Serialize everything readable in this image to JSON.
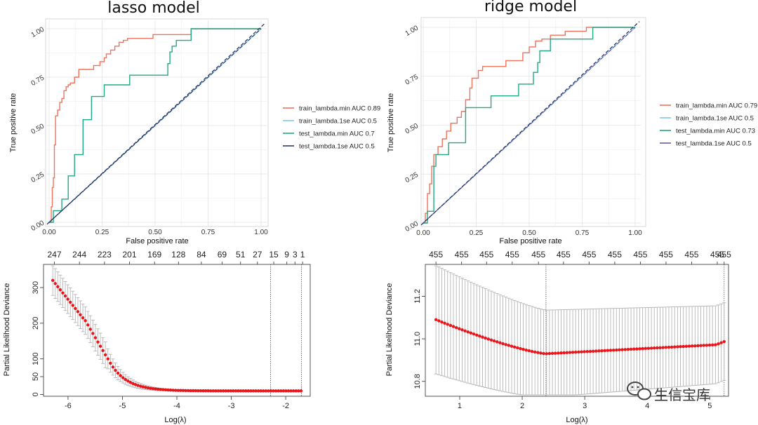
{
  "chart_data": [
    {
      "type": "line",
      "title": "lasso model",
      "xlabel": "False positive rate",
      "ylabel": "True positive rate",
      "xlim": [
        0,
        1
      ],
      "ylim": [
        0,
        1
      ],
      "xticks": [
        "0.00",
        "0.25",
        "0.50",
        "0.75",
        "1.00"
      ],
      "yticks": [
        "0.00",
        "0.25",
        "0.50",
        "0.75",
        "1.00"
      ],
      "series": [
        {
          "name": "train_lambda.min AUC 0.89",
          "color": "#f0715c",
          "x": [
            0,
            0.01,
            0.01,
            0.015,
            0.015,
            0.02,
            0.02,
            0.025,
            0.025,
            0.03,
            0.03,
            0.04,
            0.04,
            0.05,
            0.05,
            0.06,
            0.06,
            0.07,
            0.07,
            0.08,
            0.08,
            0.09,
            0.09,
            0.1,
            0.1,
            0.12,
            0.12,
            0.14,
            0.14,
            0.21,
            0.21,
            0.24,
            0.24,
            0.26,
            0.26,
            0.27,
            0.27,
            0.29,
            0.29,
            0.31,
            0.31,
            0.33,
            0.33,
            0.35,
            0.35,
            0.37,
            0.37,
            0.49,
            0.49,
            0.67,
            0.67,
            1.0
          ],
          "y": [
            0,
            0,
            0.08,
            0.08,
            0.18,
            0.18,
            0.23,
            0.23,
            0.4,
            0.4,
            0.55,
            0.55,
            0.58,
            0.58,
            0.62,
            0.62,
            0.64,
            0.64,
            0.68,
            0.68,
            0.7,
            0.7,
            0.71,
            0.71,
            0.72,
            0.72,
            0.75,
            0.75,
            0.79,
            0.79,
            0.81,
            0.81,
            0.83,
            0.83,
            0.85,
            0.85,
            0.87,
            0.87,
            0.89,
            0.89,
            0.91,
            0.91,
            0.93,
            0.93,
            0.94,
            0.94,
            0.95,
            0.95,
            0.97,
            0.97,
            1.0,
            1.0
          ]
        },
        {
          "name": "train_lambda.1se AUC 0.5",
          "color": "#7fc8e8",
          "x": [
            0,
            1
          ],
          "y": [
            0,
            1
          ]
        },
        {
          "name": "test_lambda.min AUC 0.7",
          "color": "#22a884",
          "x": [
            0,
            0.02,
            0.02,
            0.06,
            0.06,
            0.09,
            0.09,
            0.12,
            0.12,
            0.16,
            0.16,
            0.2,
            0.2,
            0.26,
            0.26,
            0.38,
            0.38,
            0.46,
            0.46,
            0.56,
            0.56,
            0.57,
            0.57,
            0.58,
            0.58,
            0.6,
            0.6,
            0.62,
            0.62,
            0.67,
            0.67,
            0.84,
            0.84,
            1.0
          ],
          "y": [
            0,
            0,
            0.06,
            0.06,
            0.12,
            0.12,
            0.24,
            0.24,
            0.35,
            0.35,
            0.53,
            0.53,
            0.65,
            0.65,
            0.71,
            0.71,
            0.76,
            0.76,
            0.76,
            0.76,
            0.82,
            0.82,
            0.88,
            0.88,
            0.91,
            0.91,
            0.94,
            0.94,
            0.94,
            0.94,
            1.0,
            1.0,
            1.0,
            1.0
          ]
        },
        {
          "name": "test_lambda.1se AUC 0.5",
          "color": "#2b3a6e",
          "x": [
            0,
            1
          ],
          "y": [
            0,
            1
          ]
        }
      ]
    },
    {
      "type": "line",
      "title": "ridge model",
      "xlabel": "False positive rate",
      "ylabel": "True positive rate",
      "xlim": [
        0,
        1
      ],
      "ylim": [
        0,
        1
      ],
      "xticks": [
        "0.00",
        "0.25",
        "0.50",
        "0.75",
        "1.00"
      ],
      "yticks": [
        "0.00",
        "0.25",
        "0.50",
        "0.75",
        "1.00"
      ],
      "series": [
        {
          "name": "train_lambda.min AUC 0.79",
          "color": "#f0715c",
          "x": [
            0,
            0.01,
            0.01,
            0.02,
            0.02,
            0.03,
            0.03,
            0.04,
            0.04,
            0.05,
            0.05,
            0.07,
            0.07,
            0.09,
            0.09,
            0.11,
            0.11,
            0.13,
            0.13,
            0.16,
            0.16,
            0.18,
            0.18,
            0.2,
            0.2,
            0.22,
            0.22,
            0.23,
            0.23,
            0.26,
            0.26,
            0.28,
            0.28,
            0.39,
            0.39,
            0.47,
            0.47,
            0.5,
            0.5,
            0.53,
            0.53,
            0.56,
            0.56,
            0.6,
            0.6,
            0.67,
            0.67,
            0.77,
            0.77,
            0.8,
            0.8,
            1.0
          ],
          "y": [
            0,
            0,
            0.05,
            0.05,
            0.15,
            0.15,
            0.2,
            0.2,
            0.29,
            0.29,
            0.35,
            0.35,
            0.39,
            0.39,
            0.43,
            0.43,
            0.47,
            0.47,
            0.51,
            0.51,
            0.54,
            0.54,
            0.57,
            0.57,
            0.63,
            0.63,
            0.69,
            0.69,
            0.74,
            0.74,
            0.78,
            0.78,
            0.8,
            0.8,
            0.83,
            0.83,
            0.87,
            0.87,
            0.9,
            0.9,
            0.93,
            0.93,
            0.94,
            0.94,
            0.96,
            0.96,
            0.98,
            0.98,
            1.0,
            1.0,
            1.0,
            1.0
          ]
        },
        {
          "name": "train_lambda.1se AUC 0.5",
          "color": "#7fc8e8",
          "x": [
            0,
            1
          ],
          "y": [
            0,
            1
          ]
        },
        {
          "name": "test_lambda.min AUC 0.73",
          "color": "#22a884",
          "x": [
            0,
            0.02,
            0.02,
            0.05,
            0.05,
            0.06,
            0.06,
            0.12,
            0.12,
            0.2,
            0.2,
            0.32,
            0.32,
            0.45,
            0.45,
            0.52,
            0.52,
            0.54,
            0.54,
            0.55,
            0.55,
            0.6,
            0.6,
            0.65,
            0.65,
            0.8,
            0.8,
            1.0
          ],
          "y": [
            0,
            0,
            0.06,
            0.06,
            0.29,
            0.29,
            0.35,
            0.35,
            0.41,
            0.41,
            0.59,
            0.59,
            0.65,
            0.65,
            0.71,
            0.71,
            0.77,
            0.77,
            0.82,
            0.82,
            0.88,
            0.88,
            0.94,
            0.94,
            0.94,
            0.94,
            1.0,
            1.0
          ]
        },
        {
          "name": "test_lambda.1se AUC 0.5",
          "color": "#6a5aa8",
          "x": [
            0,
            1
          ],
          "y": [
            0,
            1
          ]
        }
      ]
    },
    {
      "type": "scatter",
      "subtype": "cv-deviance",
      "xlabel": "Log(λ)",
      "ylabel": "Partial Likelihood Deviance",
      "xlim": [
        -6.45,
        -1.55
      ],
      "ylim": [
        -5,
        365
      ],
      "xticks": [
        -6,
        -5,
        -4,
        -3,
        -2
      ],
      "yticks": [
        0,
        50,
        100,
        200,
        300
      ],
      "top_axis": {
        "values": [
          -6.25,
          -5.75,
          -5.25,
          -4.75,
          -4.25,
          -3.75,
          -3.25,
          -2.75,
          -2.25,
          -1.93,
          -1.77,
          -1.55
        ],
        "labels": [
          "247",
          "244",
          "223",
          "201",
          "169",
          "128",
          "84",
          "69",
          "51",
          "27",
          "15",
          "9",
          "3",
          "1"
        ]
      },
      "top_axis_positions": [
        -6.25,
        -5.79,
        -5.33,
        -4.87,
        -4.41,
        -3.97,
        -3.55,
        -3.17,
        -2.83,
        -2.52,
        -2.22,
        -1.98,
        -1.83,
        -1.69
      ],
      "vlines": [
        -2.28,
        -1.71
      ],
      "points_from": -6.28,
      "points_to": -1.72,
      "n_points": 100,
      "curve": {
        "kind": "lasso"
      }
    },
    {
      "type": "scatter",
      "subtype": "cv-deviance",
      "xlabel": "Log(λ)",
      "ylabel": "Partial Likelihood Deviance",
      "xlim": [
        0.45,
        5.3
      ],
      "ylim": [
        10.73,
        11.35
      ],
      "xticks": [
        1,
        2,
        3,
        4,
        5
      ],
      "yticks": [
        "10.8",
        "11.0",
        "11.2"
      ],
      "top_axis_labels": [
        "455",
        "455",
        "455",
        "455",
        "455",
        "455",
        "455",
        "455",
        "455",
        "455",
        "455",
        "455",
        "455"
      ],
      "top_axis_positions": [
        0.62,
        1.03,
        1.43,
        1.84,
        2.26,
        2.66,
        3.07,
        3.48,
        3.89,
        4.3,
        4.71,
        5.12,
        5.23
      ],
      "vlines": [
        2.38,
        5.23
      ],
      "points_from": 0.62,
      "points_to": 5.23,
      "n_points": 100,
      "curve": {
        "kind": "ridge"
      }
    }
  ],
  "watermark": {
    "text": "生信宝库",
    "icon": "wechat-icon"
  }
}
